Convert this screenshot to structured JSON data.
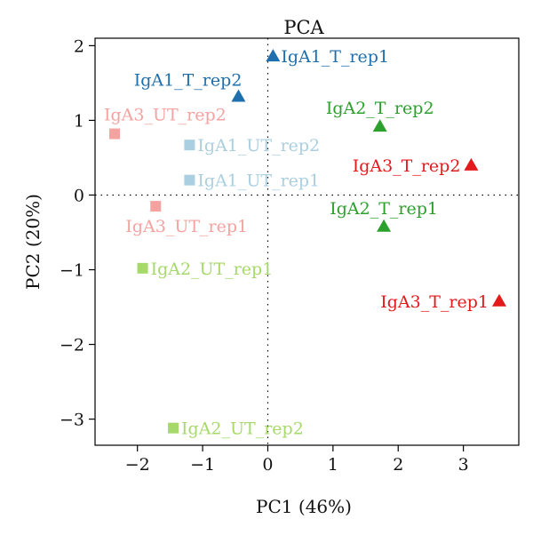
{
  "chart_data": {
    "type": "scatter",
    "title": "PCA",
    "xlabel": "PC1 (46%)",
    "ylabel": "PC2 (20%)",
    "xlim": [
      -2.65,
      3.85
    ],
    "ylim": [
      -3.35,
      2.1
    ],
    "xticks": [
      -2,
      -1,
      0,
      1,
      2,
      3
    ],
    "yticks": [
      -3,
      -2,
      -1,
      0,
      1,
      2
    ],
    "xtick_labels": [
      "−2",
      "−1",
      "0",
      "1",
      "2",
      "3"
    ],
    "ytick_labels": [
      "−3",
      "−2",
      "−1",
      "0",
      "1",
      "2"
    ],
    "reference_lines": {
      "x": 0,
      "y": 0,
      "style": "dotted"
    },
    "grid": false,
    "points": [
      {
        "label": "IgA1_T_rep1",
        "x": 0.08,
        "y": 1.86,
        "marker": "triangle",
        "color": "#1f6fad",
        "label_side": "right"
      },
      {
        "label": "IgA1_T_rep2",
        "x": -0.45,
        "y": 1.32,
        "marker": "triangle",
        "color": "#1f6fad",
        "label_side": "above-left"
      },
      {
        "label": "IgA1_UT_rep2",
        "x": -1.2,
        "y": 0.67,
        "marker": "square",
        "color": "#a9cfe0",
        "label_side": "right"
      },
      {
        "label": "IgA1_UT_rep1",
        "x": -1.2,
        "y": 0.2,
        "marker": "square",
        "color": "#a9cfe0",
        "label_side": "right"
      },
      {
        "label": "IgA3_UT_rep2",
        "x": -2.35,
        "y": 0.82,
        "marker": "square",
        "color": "#f4a3a0",
        "label_side": "above-right"
      },
      {
        "label": "IgA3_UT_rep1",
        "x": -1.72,
        "y": -0.15,
        "marker": "square",
        "color": "#f4a3a0",
        "label_side": "below"
      },
      {
        "label": "IgA2_UT_rep1",
        "x": -1.92,
        "y": -0.98,
        "marker": "square",
        "color": "#a6d96a",
        "label_side": "right"
      },
      {
        "label": "IgA2_UT_rep2",
        "x": -1.45,
        "y": -3.12,
        "marker": "square",
        "color": "#a6d96a",
        "label_side": "right"
      },
      {
        "label": "IgA2_T_rep2",
        "x": 1.72,
        "y": 0.92,
        "marker": "triangle",
        "color": "#2ca02c",
        "label_side": "above"
      },
      {
        "label": "IgA2_T_rep1",
        "x": 1.78,
        "y": -0.42,
        "marker": "triangle",
        "color": "#2ca02c",
        "label_side": "above"
      },
      {
        "label": "IgA3_T_rep2",
        "x": 3.12,
        "y": 0.4,
        "marker": "triangle",
        "color": "#e31a1c",
        "label_side": "left"
      },
      {
        "label": "IgA3_T_rep1",
        "x": 3.55,
        "y": -1.42,
        "marker": "triangle",
        "color": "#e31a1c",
        "label_side": "left"
      }
    ]
  }
}
